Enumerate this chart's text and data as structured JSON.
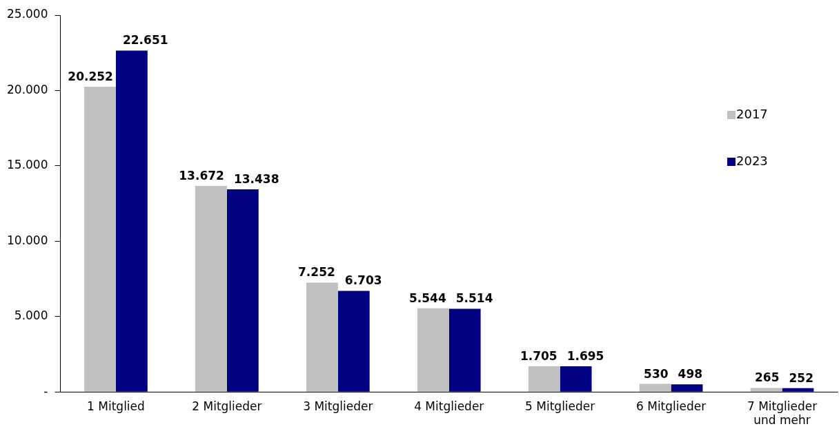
{
  "chart_data": {
    "type": "bar",
    "categories": [
      "1 Mitglied",
      "2 Mitglieder",
      "3 Mitglieder",
      "4 Mitglieder",
      "5 Mitglieder",
      "6 Mitglieder",
      "7 Mitglieder und mehr"
    ],
    "series": [
      {
        "name": "2017",
        "color": "#c0c0c0",
        "values": [
          20252,
          13672,
          7252,
          5544,
          1705,
          530,
          265
        ],
        "value_labels": [
          "20.252",
          "13.672",
          "7.252",
          "5.544",
          "1.705",
          "530",
          "265"
        ]
      },
      {
        "name": "2023",
        "color": "#000080",
        "values": [
          22651,
          13438,
          6703,
          5514,
          1695,
          498,
          252
        ],
        "value_labels": [
          "22.651",
          "13.438",
          "6.703",
          "5.514",
          "1.695",
          "498",
          "252"
        ]
      }
    ],
    "ylim": [
      0,
      25000
    ],
    "yticks": [
      {
        "value": 0,
        "label": "-"
      },
      {
        "value": 5000,
        "label": "5.000"
      },
      {
        "value": 10000,
        "label": "10.000"
      },
      {
        "value": 15000,
        "label": "15.000"
      },
      {
        "value": 20000,
        "label": "20.000"
      },
      {
        "value": 25000,
        "label": "25.000"
      }
    ],
    "grid": false,
    "legend": "right"
  }
}
